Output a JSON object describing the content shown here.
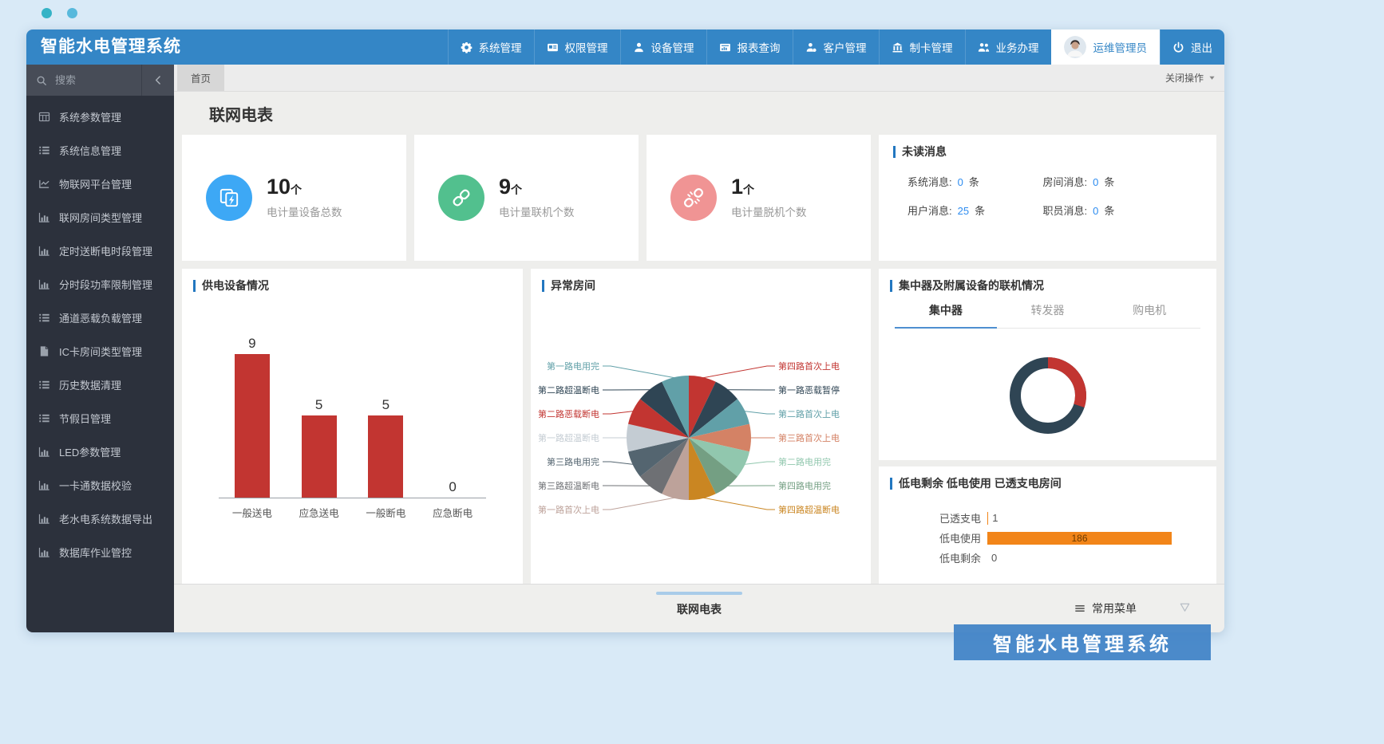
{
  "theme": {
    "brand_blue": "#3486c6",
    "accent_blue": "#2d8cf0",
    "bar_red": "#c23531",
    "bar_orange": "#f28519",
    "donut_dark": "#2f4554"
  },
  "header": {
    "logo": "智能水电管理系统",
    "nav": [
      "系统管理",
      "权限管理",
      "设备管理",
      "报表查询",
      "客户管理",
      "制卡管理",
      "业务办理"
    ],
    "user": {
      "name": "运维管理员"
    },
    "logout_label": "退出"
  },
  "sidebar": {
    "search_placeholder": "搜索",
    "items": [
      "系统参数管理",
      "系统信息管理",
      "物联网平台管理",
      "联网房间类型管理",
      "定时送断电时段管理",
      "分时段功率限制管理",
      "通道恶载负载管理",
      "IC卡房间类型管理",
      "历史数据清理",
      "节假日管理",
      "LED参数管理",
      "一卡通数据校验",
      "老水电系统数据导出",
      "数据库作业管控"
    ]
  },
  "tabbar": {
    "active_tab": "首页",
    "close_menu": "关闭操作"
  },
  "page": {
    "title": "联网电表"
  },
  "stat_cards": [
    {
      "value": "10",
      "unit": "个",
      "label": "电计量设备总数",
      "color": "#3da8f5",
      "icon": "meter-icon"
    },
    {
      "value": "9",
      "unit": "个",
      "label": "电计量联机个数",
      "color": "#52c08e",
      "icon": "link-icon"
    },
    {
      "value": "1",
      "unit": "个",
      "label": "电计量脱机个数",
      "color": "#f09494",
      "icon": "broken-link-icon"
    }
  ],
  "messages": {
    "title": "未读消息",
    "items": [
      {
        "label": "系统消息:",
        "value": "0",
        "unit": "条"
      },
      {
        "label": "房间消息:",
        "value": "0",
        "unit": "条"
      },
      {
        "label": "用户消息:",
        "value": "25",
        "unit": "条"
      },
      {
        "label": "职员消息:",
        "value": "0",
        "unit": "条"
      }
    ]
  },
  "chart_data": [
    {
      "id": "power-device-bar",
      "type": "bar",
      "title": "供电设备情况",
      "categories": [
        "一般送电",
        "应急送电",
        "一般断电",
        "应急断电"
      ],
      "values": [
        9,
        5,
        5,
        0
      ],
      "bar_color": "#c23531",
      "ylim": [
        0,
        9
      ],
      "grid": false,
      "legend": "none"
    },
    {
      "id": "abnormal-room-pie",
      "type": "pie",
      "title": "异常房间",
      "slices": [
        {
          "name": "第四路首次上电",
          "value": 1,
          "color": "#c23531"
        },
        {
          "name": "第一路恶载暂停",
          "value": 1,
          "color": "#2f4554"
        },
        {
          "name": "第二路首次上电",
          "value": 1,
          "color": "#61a0a8"
        },
        {
          "name": "第三路首次上电",
          "value": 1,
          "color": "#d48265"
        },
        {
          "name": "第二路电用完",
          "value": 1,
          "color": "#91c7ae"
        },
        {
          "name": "第四路电用完",
          "value": 1,
          "color": "#749f83"
        },
        {
          "name": "第四路超温断电",
          "value": 1,
          "color": "#ca8622"
        },
        {
          "name": "第一路首次上电",
          "value": 1,
          "color": "#bda29a"
        },
        {
          "name": "第三路超温断电",
          "value": 1,
          "color": "#6e7074"
        },
        {
          "name": "第三路电用完",
          "value": 1,
          "color": "#546570"
        },
        {
          "name": "第一路超温断电",
          "value": 1,
          "color": "#c4ccd3"
        },
        {
          "name": "第二路恶载断电",
          "value": 1,
          "color": "#c23531"
        },
        {
          "name": "第二路超温断电",
          "value": 1,
          "color": "#2f4554"
        },
        {
          "name": "第一路电用完",
          "value": 1,
          "color": "#61a0a8"
        }
      ],
      "label_position": "outside"
    },
    {
      "id": "concentrator-donut",
      "type": "pie",
      "title": "集中器及附属设备的联机情况",
      "tabs": [
        "集中器",
        "转发器",
        "购电机"
      ],
      "active_tab": "集中器",
      "segments": [
        {
          "label": "",
          "value": 3,
          "color": "#c23531"
        },
        {
          "label": "",
          "value": 7,
          "color": "#2f4554"
        }
      ],
      "shape": "donut"
    },
    {
      "id": "low-power-bars",
      "type": "bar",
      "orientation": "horizontal",
      "title": "低电剩余 低电使用 已透支电房间",
      "categories": [
        "已透支电",
        "低电使用",
        "低电剩余"
      ],
      "values": [
        1,
        186,
        0
      ],
      "bar_color": "#f28519",
      "xlim": [
        0,
        186
      ]
    }
  ],
  "bottom_bar": {
    "page_label": "联网电表",
    "menu_label": "常用菜单"
  },
  "watermark": "智能水电管理系统"
}
